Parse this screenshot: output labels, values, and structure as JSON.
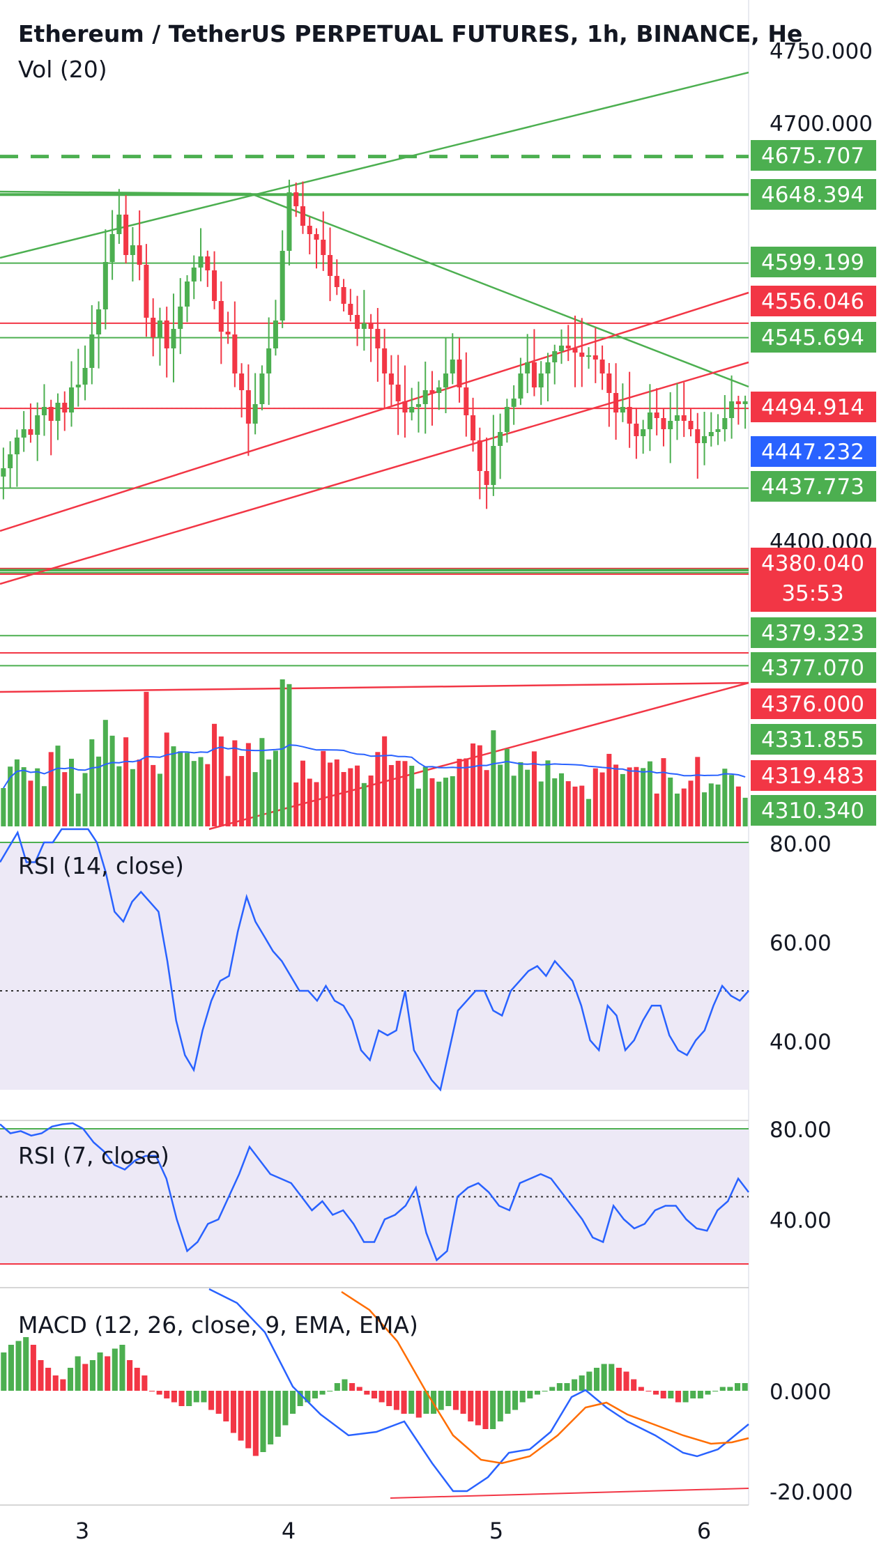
{
  "header": {
    "title": "Ethereum / TetherUS PERPETUAL FUTURES, 1h, BINANCE, He",
    "volume_label": "Vol (20)"
  },
  "colors": {
    "up": "#4caf50",
    "down": "#f23645",
    "blue": "#2962ff",
    "orange": "#ff6d00",
    "rsi_band": "#ede9f6",
    "text": "#131722"
  },
  "chart_data": [
    {
      "type": "candlestick",
      "title": "Ethereum / TetherUS PERPETUAL FUTURES, 1h, BINANCE, He",
      "x_ticks": [
        "3",
        "4",
        "5",
        "6"
      ],
      "y_ticks": [
        "4750.000",
        "4700.000",
        "4400.000"
      ],
      "y_range": [
        4300,
        4760
      ],
      "price_labels": [
        {
          "text": "4675.707",
          "color": "green"
        },
        {
          "text": "4648.394",
          "color": "green"
        },
        {
          "text": "4599.199",
          "color": "green"
        },
        {
          "text": "4556.046",
          "color": "red"
        },
        {
          "text": "4545.694",
          "color": "green"
        },
        {
          "text": "4494.914",
          "color": "red"
        },
        {
          "text": "4447.232",
          "color": "blue"
        },
        {
          "text": "4437.773",
          "color": "green"
        },
        {
          "text": "4380.040",
          "color": "red",
          "sub": "35:53"
        },
        {
          "text": "4379.323",
          "color": "green"
        },
        {
          "text": "4377.070",
          "color": "green"
        },
        {
          "text": "4376.000",
          "color": "red"
        },
        {
          "text": "4331.855",
          "color": "green"
        },
        {
          "text": "4319.483",
          "color": "red"
        },
        {
          "text": "4310.340",
          "color": "green"
        }
      ],
      "candles_close": [
        4452,
        4462,
        4474,
        4480,
        4476,
        4490,
        4496,
        4486,
        4499,
        4492,
        4510,
        4512,
        4524,
        4548,
        4566,
        4600,
        4620,
        4634,
        4605,
        4612,
        4598,
        4560,
        4546,
        4558,
        4538,
        4552,
        4568,
        4586,
        4596,
        4604,
        4594,
        4572,
        4550,
        4548,
        4520,
        4508,
        4484,
        4498,
        4520,
        4538,
        4558,
        4608,
        4650,
        4640,
        4626,
        4620,
        4616,
        4605,
        4590,
        4582,
        4570,
        4562,
        4552,
        4556,
        4552,
        4538,
        4520,
        4512,
        4500,
        4492,
        4496,
        4498,
        4508,
        4506,
        4510,
        4520,
        4530,
        4510,
        4490,
        4472,
        4450,
        4440,
        4468,
        4478,
        4496,
        4502,
        4520,
        4528,
        4510,
        4520,
        4528,
        4536,
        4540,
        4538,
        4535,
        4532,
        4533,
        4530,
        4520,
        4506,
        4492,
        4496,
        4484,
        4475,
        4480,
        4492,
        4488,
        4480,
        4486,
        4490,
        4486,
        4480,
        4470,
        4475,
        4478,
        4480,
        4488,
        4500,
        4498,
        4500
      ],
      "volume_bars": "histogram, green up / red down, with blue 20-period average line",
      "series": [
        {
          "name": "Vol (20)",
          "type": "bar"
        }
      ]
    },
    {
      "type": "line",
      "title": "RSI (14, close)",
      "y_ticks": [
        "80.00",
        "60.00",
        "40.00"
      ],
      "y_range": [
        25,
        83
      ],
      "values": [
        76,
        79,
        82,
        76,
        76,
        80,
        80,
        84,
        86,
        88,
        84,
        80,
        74,
        66,
        64,
        68,
        70,
        68,
        66,
        56,
        44,
        37,
        34,
        42,
        48,
        52,
        53,
        62,
        69,
        64,
        61,
        58,
        56,
        53,
        50,
        50,
        48,
        51,
        48,
        47,
        44,
        38,
        36,
        42,
        41,
        42,
        50,
        38,
        35,
        32,
        30,
        38,
        46,
        48,
        50,
        50,
        46,
        45,
        50,
        52,
        54,
        55,
        53,
        56,
        54,
        52,
        47,
        40,
        38,
        47,
        45,
        38,
        40,
        44,
        47,
        47,
        41,
        38,
        37,
        40,
        42,
        47,
        51,
        49,
        48,
        50
      ],
      "reference_lines": [
        50
      ]
    },
    {
      "type": "line",
      "title": "RSI (7, close)",
      "y_ticks": [
        "80.00",
        "40.00"
      ],
      "y_range": [
        15,
        84
      ],
      "values": [
        82,
        78,
        79,
        77,
        78,
        81,
        82,
        83,
        80,
        74,
        70,
        64,
        62,
        66,
        68,
        68,
        58,
        40,
        26,
        30,
        38,
        40,
        50,
        60,
        72,
        66,
        60,
        58,
        56,
        50,
        44,
        48,
        42,
        44,
        38,
        30,
        30,
        40,
        42,
        46,
        54,
        34,
        22,
        26,
        50,
        54,
        56,
        52,
        46,
        44,
        56,
        58,
        60,
        58,
        52,
        46,
        40,
        32,
        30,
        46,
        40,
        36,
        38,
        44,
        46,
        46,
        40,
        36,
        35,
        44,
        48,
        58,
        52
      ],
      "reference_lines": [
        50
      ]
    },
    {
      "type": "bar",
      "title": "MACD (12, 26, close, 9, EMA, EMA)",
      "y_ticks": [
        "0.000",
        "-20.000"
      ],
      "series": [
        {
          "name": "MACD",
          "type": "line"
        },
        {
          "name": "signal",
          "type": "line"
        },
        {
          "name": "histogram",
          "type": "bar"
        }
      ],
      "histogram": [
        10,
        12,
        13,
        14,
        12,
        8,
        6,
        4,
        3,
        6,
        9,
        7,
        8,
        10,
        9,
        11,
        12,
        8,
        6,
        4,
        0,
        -1,
        -2,
        -3,
        -4,
        -4,
        -3,
        -3,
        -5,
        -6,
        -8,
        -11,
        -13,
        -15,
        -17,
        -16,
        -14,
        -12,
        -9,
        -6,
        -4,
        -3,
        -2,
        -1,
        0,
        2,
        3,
        2,
        1,
        -1,
        -2,
        -3,
        -4,
        -5,
        -6,
        -6,
        -7,
        -6,
        -6,
        -5,
        -4,
        -5,
        -6,
        -8,
        -9,
        -10,
        -10,
        -8,
        -6,
        -5,
        -3,
        -2,
        -1,
        0,
        1,
        2,
        2,
        3,
        4,
        5,
        6,
        7,
        7,
        6,
        5,
        3,
        1,
        0,
        -1,
        -2,
        -2,
        -3,
        -3,
        -2,
        -2,
        -1,
        0,
        1,
        1,
        2,
        2
      ]
    }
  ]
}
